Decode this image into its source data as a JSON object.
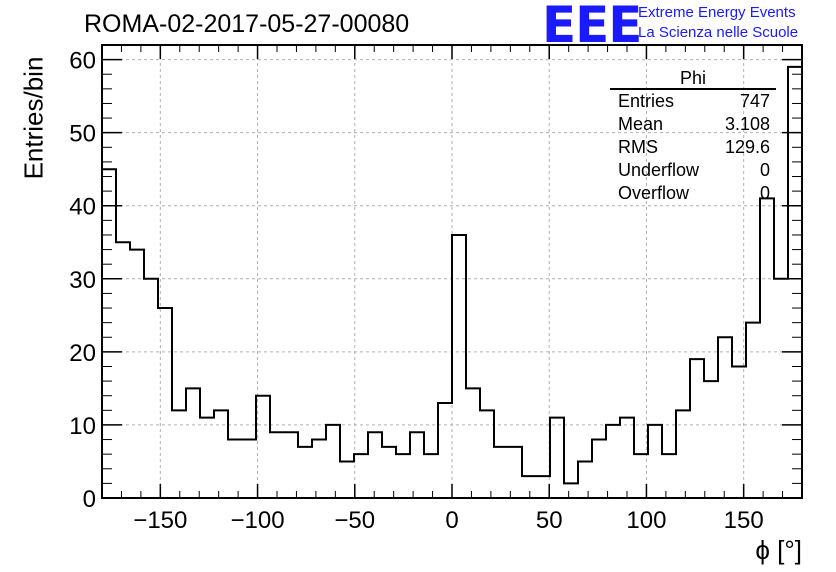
{
  "header": {
    "title": "ROMA-02-2017-05-27-00080",
    "logo_text": "EEE",
    "org_line1": "Extreme Energy Events",
    "org_line2": "La Scienza nelle Scuole"
  },
  "colors": {
    "logo": "#1a1aff",
    "line": "#000000",
    "grid": "#b0b0b0"
  },
  "stats": {
    "name": "Phi",
    "rows": [
      {
        "label": "Entries",
        "value": "747"
      },
      {
        "label": "Mean",
        "value": "3.108"
      },
      {
        "label": "RMS",
        "value": "129.6"
      },
      {
        "label": "Underflow",
        "value": "0"
      },
      {
        "label": "Overflow",
        "value": "0"
      }
    ]
  },
  "chart_data": {
    "type": "bar",
    "style": "step-histogram",
    "title": "ROMA-02-2017-05-27-00080",
    "xlabel": "ϕ [°]",
    "ylabel": "Entries/bin",
    "xlim": [
      -180,
      180
    ],
    "ylim": [
      0,
      62
    ],
    "bin_width": 7.2,
    "grid": true,
    "x_ticks": [
      -150,
      -100,
      -50,
      0,
      50,
      100,
      150
    ],
    "x_tick_labels": [
      "−150",
      "−100",
      "−50",
      "0",
      "50",
      "100",
      "150"
    ],
    "y_ticks": [
      0,
      10,
      20,
      30,
      40,
      50,
      60
    ],
    "y_tick_labels": [
      "0",
      "10",
      "20",
      "30",
      "40",
      "50",
      "60"
    ],
    "series": [
      {
        "values": [
          45,
          35,
          34,
          30,
          26,
          12,
          15,
          11,
          12,
          8,
          8,
          14,
          9,
          9,
          7,
          8,
          10,
          5,
          6,
          9,
          7,
          6,
          9,
          6,
          13,
          36,
          15,
          12,
          7,
          7,
          3,
          3,
          11,
          2,
          5,
          8,
          10,
          11,
          6,
          10,
          6,
          12,
          19,
          16,
          22,
          18,
          24,
          41,
          30,
          59
        ]
      }
    ]
  }
}
